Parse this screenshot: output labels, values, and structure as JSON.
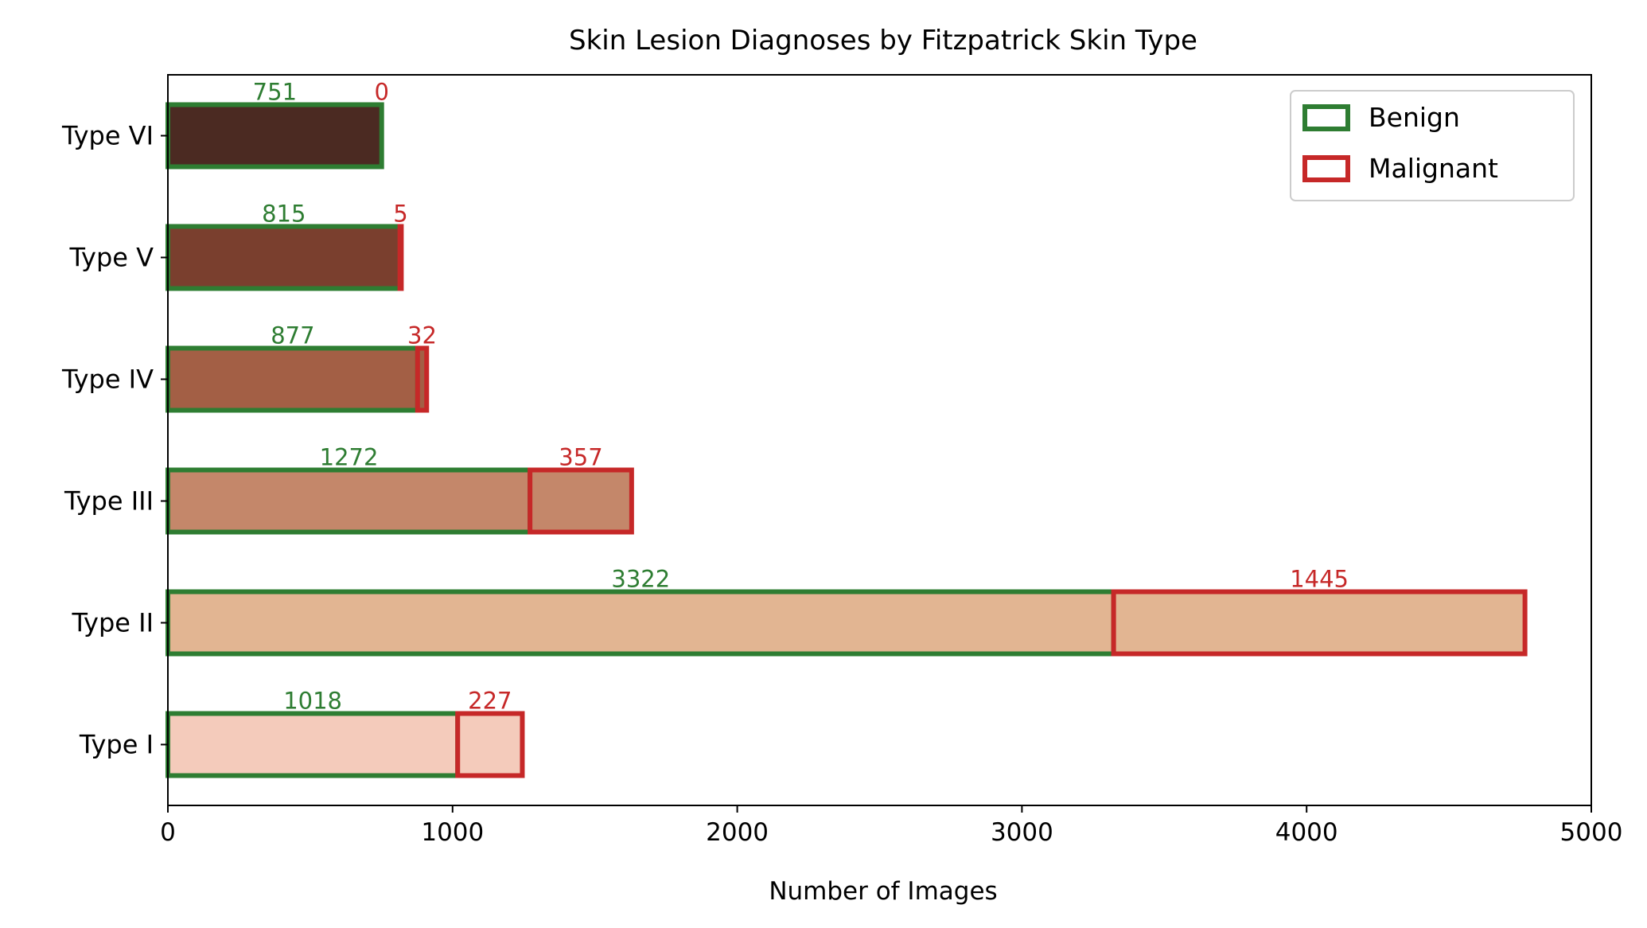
{
  "chart_data": {
    "type": "bar",
    "orientation": "horizontal",
    "stacked": true,
    "title": "Skin Lesion Diagnoses by Fitzpatrick Skin Type",
    "xlabel": "Number of Images",
    "ylabel": "",
    "xlim": [
      0,
      5000
    ],
    "xticks": [
      0,
      1000,
      2000,
      3000,
      4000,
      5000
    ],
    "xtick_labels": [
      "0",
      "1000",
      "2000",
      "3000",
      "4000",
      "5000"
    ],
    "categories": [
      "Type I",
      "Type II",
      "Type III",
      "Type IV",
      "Type V",
      "Type VI"
    ],
    "fill_colors": [
      "#f4cbbb",
      "#e2b592",
      "#c4876a",
      "#a35f45",
      "#7a3f2e",
      "#4b2a22"
    ],
    "series": [
      {
        "name": "Benign",
        "values": [
          1018,
          3322,
          1272,
          877,
          815,
          751
        ],
        "edge_color": "#2e7d32"
      },
      {
        "name": "Malignant",
        "values": [
          227,
          1445,
          357,
          32,
          5,
          0
        ],
        "edge_color": "#c62828"
      }
    ],
    "legend_position": "top-right",
    "grid": false
  }
}
